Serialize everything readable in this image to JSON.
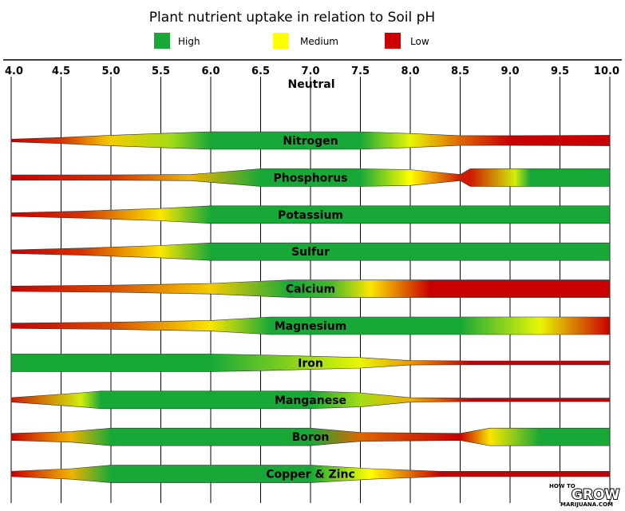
{
  "chart_data": {
    "type": "band",
    "title": "Plant nutrient uptake in relation to Soil pH",
    "xlim": [
      4.0,
      10.0
    ],
    "x_ticks": [
      "4.0",
      "4.5",
      "5.0",
      "5.5",
      "6.0",
      "6.5",
      "7.0",
      "7.5",
      "8.0",
      "8.5",
      "9.0",
      "9.5",
      "10.0"
    ],
    "neutral_label": "Neutral",
    "legend": [
      {
        "label": "High",
        "color": "#18a838"
      },
      {
        "label": "Medium",
        "color": "#ffff00"
      },
      {
        "label": "Low",
        "color": "#cc0000"
      }
    ],
    "series": [
      {
        "name": "Nitrogen",
        "bars": [
          {
            "ph": 4.0,
            "width": 0.15,
            "level": 0.0
          },
          {
            "ph": 4.5,
            "width": 0.35,
            "level": 0.1
          },
          {
            "ph": 5.0,
            "width": 0.6,
            "level": 0.4
          },
          {
            "ph": 5.6,
            "width": 0.85,
            "level": 0.7
          },
          {
            "ph": 6.0,
            "width": 1.0,
            "level": 1.0
          },
          {
            "ph": 7.5,
            "width": 1.0,
            "level": 1.0
          },
          {
            "ph": 8.0,
            "width": 0.8,
            "level": 0.55
          },
          {
            "ph": 8.5,
            "width": 0.55,
            "level": 0.2
          },
          {
            "ph": 9.0,
            "width": 0.55,
            "level": 0.0
          },
          {
            "ph": 10.0,
            "width": 0.6,
            "level": 0.0
          }
        ]
      },
      {
        "name": "Phosphorus",
        "bars": [
          {
            "ph": 4.0,
            "width": 0.3,
            "level": 0.0
          },
          {
            "ph": 5.0,
            "width": 0.3,
            "level": 0.1
          },
          {
            "ph": 5.8,
            "width": 0.35,
            "level": 0.35
          },
          {
            "ph": 6.5,
            "width": 1.0,
            "level": 1.0
          },
          {
            "ph": 7.5,
            "width": 1.0,
            "level": 1.0
          },
          {
            "ph": 8.0,
            "width": 0.9,
            "level": 0.5
          },
          {
            "ph": 8.5,
            "width": 0.35,
            "level": 0.05
          },
          {
            "ph": 8.6,
            "width": 1.0,
            "level": 0.05
          },
          {
            "ph": 9.05,
            "width": 1.0,
            "level": 0.6
          },
          {
            "ph": 9.2,
            "width": 1.0,
            "level": 1.0
          },
          {
            "ph": 10.0,
            "width": 1.0,
            "level": 1.0
          }
        ]
      },
      {
        "name": "Potassium",
        "bars": [
          {
            "ph": 4.0,
            "width": 0.2,
            "level": 0.0
          },
          {
            "ph": 4.7,
            "width": 0.4,
            "level": 0.1
          },
          {
            "ph": 5.5,
            "width": 0.7,
            "level": 0.45
          },
          {
            "ph": 6.0,
            "width": 1.0,
            "level": 1.0
          },
          {
            "ph": 10.0,
            "width": 1.0,
            "level": 1.0
          }
        ]
      },
      {
        "name": "Sulfur",
        "bars": [
          {
            "ph": 4.0,
            "width": 0.2,
            "level": 0.0
          },
          {
            "ph": 4.7,
            "width": 0.4,
            "level": 0.1
          },
          {
            "ph": 5.5,
            "width": 0.7,
            "level": 0.45
          },
          {
            "ph": 6.0,
            "width": 1.0,
            "level": 1.0
          },
          {
            "ph": 10.0,
            "width": 1.0,
            "level": 1.0
          }
        ]
      },
      {
        "name": "Calcium",
        "bars": [
          {
            "ph": 4.0,
            "width": 0.3,
            "level": 0.0
          },
          {
            "ph": 5.0,
            "width": 0.4,
            "level": 0.15
          },
          {
            "ph": 6.0,
            "width": 0.6,
            "level": 0.4
          },
          {
            "ph": 6.8,
            "width": 1.0,
            "level": 1.0
          },
          {
            "ph": 7.2,
            "width": 1.0,
            "level": 0.9
          },
          {
            "ph": 7.6,
            "width": 1.0,
            "level": 0.45
          },
          {
            "ph": 8.2,
            "width": 1.0,
            "level": 0.0
          },
          {
            "ph": 10.0,
            "width": 1.0,
            "level": 0.0
          }
        ]
      },
      {
        "name": "Magnesium",
        "bars": [
          {
            "ph": 4.0,
            "width": 0.3,
            "level": 0.0
          },
          {
            "ph": 5.0,
            "width": 0.4,
            "level": 0.15
          },
          {
            "ph": 6.0,
            "width": 0.6,
            "level": 0.45
          },
          {
            "ph": 6.6,
            "width": 1.0,
            "level": 1.0
          },
          {
            "ph": 8.5,
            "width": 1.0,
            "level": 1.0
          },
          {
            "ph": 9.3,
            "width": 1.0,
            "level": 0.55
          },
          {
            "ph": 10.0,
            "width": 1.0,
            "level": 0.0
          }
        ]
      },
      {
        "name": "Iron",
        "bars": [
          {
            "ph": 4.0,
            "width": 1.0,
            "level": 1.0
          },
          {
            "ph": 6.0,
            "width": 1.0,
            "level": 1.0
          },
          {
            "ph": 6.5,
            "width": 0.9,
            "level": 0.85
          },
          {
            "ph": 7.5,
            "width": 0.6,
            "level": 0.55
          },
          {
            "ph": 8.0,
            "width": 0.25,
            "level": 0.3
          },
          {
            "ph": 8.6,
            "width": 0.22,
            "level": 0.0
          },
          {
            "ph": 10.0,
            "width": 0.22,
            "level": 0.0
          }
        ]
      },
      {
        "name": "Manganese",
        "bars": [
          {
            "ph": 4.0,
            "width": 0.25,
            "level": 0.05
          },
          {
            "ph": 4.7,
            "width": 0.8,
            "level": 0.6
          },
          {
            "ph": 4.9,
            "width": 1.0,
            "level": 1.0
          },
          {
            "ph": 7.0,
            "width": 1.0,
            "level": 1.0
          },
          {
            "ph": 7.5,
            "width": 0.8,
            "level": 0.7
          },
          {
            "ph": 8.0,
            "width": 0.25,
            "level": 0.35
          },
          {
            "ph": 8.6,
            "width": 0.2,
            "level": 0.0
          },
          {
            "ph": 10.0,
            "width": 0.2,
            "level": 0.0
          }
        ]
      },
      {
        "name": "Boron",
        "bars": [
          {
            "ph": 4.0,
            "width": 0.4,
            "level": 0.0
          },
          {
            "ph": 4.6,
            "width": 0.6,
            "level": 0.35
          },
          {
            "ph": 5.0,
            "width": 1.0,
            "level": 1.0
          },
          {
            "ph": 7.0,
            "width": 1.0,
            "level": 1.0
          },
          {
            "ph": 7.5,
            "width": 0.5,
            "level": 0.2
          },
          {
            "ph": 8.5,
            "width": 0.4,
            "level": 0.0
          },
          {
            "ph": 8.8,
            "width": 1.0,
            "level": 0.45
          },
          {
            "ph": 9.3,
            "width": 1.0,
            "level": 1.0
          },
          {
            "ph": 10.0,
            "width": 1.0,
            "level": 1.0
          }
        ]
      },
      {
        "name": "Copper & Zinc",
        "bars": [
          {
            "ph": 4.0,
            "width": 0.3,
            "level": 0.0
          },
          {
            "ph": 4.6,
            "width": 0.6,
            "level": 0.35
          },
          {
            "ph": 5.0,
            "width": 1.0,
            "level": 1.0
          },
          {
            "ph": 7.0,
            "width": 1.0,
            "level": 1.0
          },
          {
            "ph": 7.6,
            "width": 0.6,
            "level": 0.5
          },
          {
            "ph": 8.3,
            "width": 0.3,
            "level": 0.0
          },
          {
            "ph": 10.0,
            "width": 0.3,
            "level": 0.0
          }
        ]
      }
    ]
  },
  "watermark": {
    "top": "HOW TO",
    "big": "GROW",
    "bottom": "MARIJUANA.COM"
  }
}
